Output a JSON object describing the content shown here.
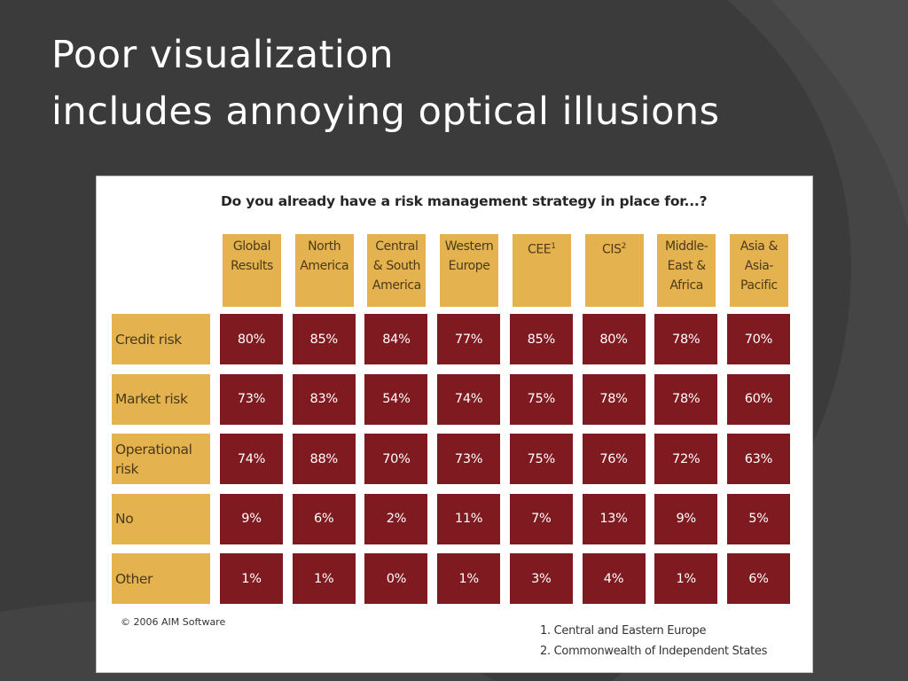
{
  "slide": {
    "title_line1": "Poor visualization",
    "title_line2": "includes annoying optical illusions"
  },
  "colors": {
    "background": "#3b3b3b",
    "header_tan": "#e4b350",
    "cell_red": "#7f1a20",
    "figure_bg": "#ffffff"
  },
  "chart_data": {
    "type": "table",
    "title": "Do you already have a risk management strategy in place for...?",
    "columns": [
      {
        "label": "Global Results",
        "lines": [
          "Global",
          "Results"
        ]
      },
      {
        "label": "North America",
        "lines": [
          "North",
          "America"
        ]
      },
      {
        "label": "Central & South America",
        "lines": [
          "Central",
          "& South",
          "America"
        ]
      },
      {
        "label": "Western Europe",
        "lines": [
          "Western",
          "Europe"
        ]
      },
      {
        "label": "CEE",
        "lines": [
          "CEE"
        ],
        "footnote": "1"
      },
      {
        "label": "CIS",
        "lines": [
          "CIS"
        ],
        "footnote": "2"
      },
      {
        "label": "Middle-East & Africa",
        "lines": [
          "Middle-",
          "East &",
          "Africa"
        ]
      },
      {
        "label": "Asia & Asia-Pacific",
        "lines": [
          "Asia &",
          "Asia-",
          "Pacific"
        ]
      }
    ],
    "rows": [
      {
        "label": "Credit risk",
        "lines": [
          "Credit risk"
        ],
        "values": [
          "80%",
          "85%",
          "84%",
          "77%",
          "85%",
          "80%",
          "78%",
          "70%"
        ]
      },
      {
        "label": "Market risk",
        "lines": [
          "Market risk"
        ],
        "values": [
          "73%",
          "83%",
          "54%",
          "74%",
          "75%",
          "78%",
          "78%",
          "60%"
        ]
      },
      {
        "label": "Operational risk",
        "lines": [
          "Operational",
          "risk"
        ],
        "values": [
          "74%",
          "88%",
          "70%",
          "73%",
          "75%",
          "76%",
          "72%",
          "63%"
        ]
      },
      {
        "label": "No",
        "lines": [
          "No"
        ],
        "values": [
          "9%",
          "6%",
          "2%",
          "11%",
          "7%",
          "13%",
          "9%",
          "5%"
        ]
      },
      {
        "label": "Other",
        "lines": [
          "Other"
        ],
        "values": [
          "1%",
          "1%",
          "0%",
          "1%",
          "3%",
          "4%",
          "1%",
          "6%"
        ]
      }
    ],
    "copyright": "© 2006 AIM Software",
    "footnotes": [
      "1. Central and Eastern Europe",
      "2. Commonwealth of Independent States"
    ]
  }
}
